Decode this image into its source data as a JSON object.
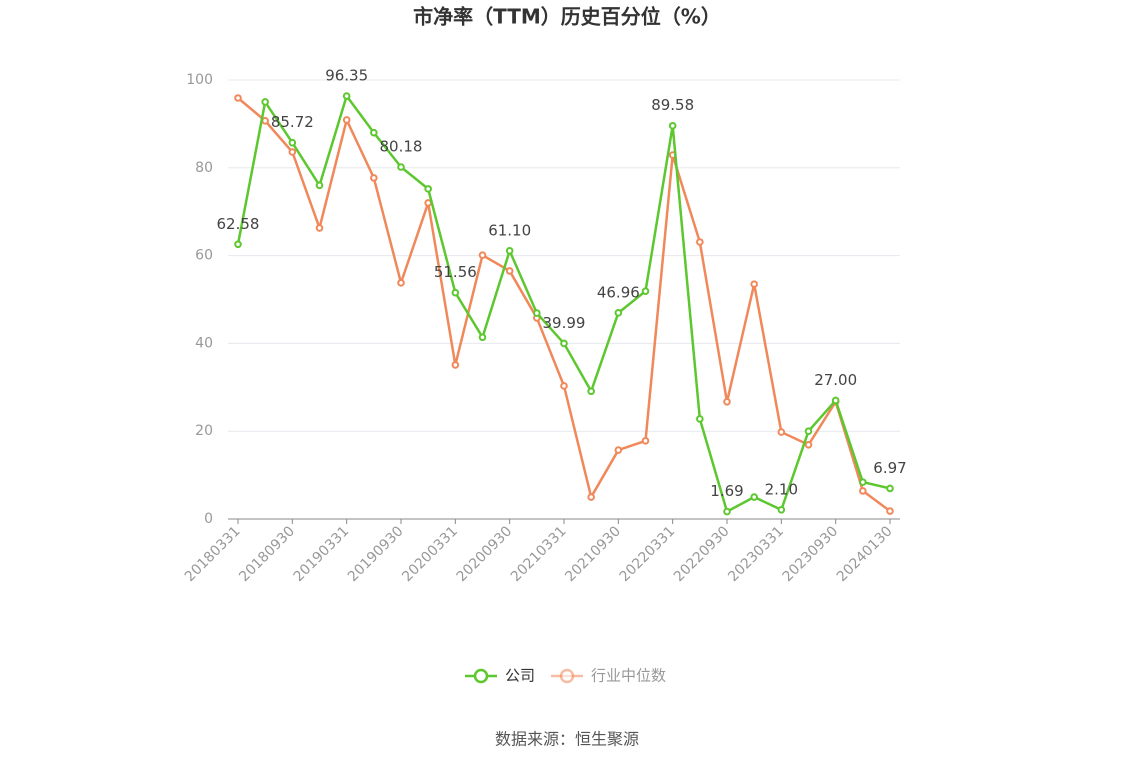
{
  "chart_data": {
    "type": "line",
    "title": "市净率（TTM）历史百分位（%）",
    "categories": [
      "20180331",
      null,
      "20180930",
      null,
      "20190331",
      null,
      "20190930",
      null,
      "20200331",
      null,
      "20200930",
      null,
      "20210331",
      null,
      "20210930",
      null,
      "20220331",
      null,
      "20220930",
      null,
      "20230331",
      null,
      "20230930",
      null,
      "20240130"
    ],
    "series": [
      {
        "name": "公司",
        "color": "#5cc72e",
        "values": [
          62.58,
          95.0,
          85.72,
          76.0,
          96.35,
          88.0,
          80.18,
          75.2,
          51.56,
          41.4,
          61.1,
          46.9,
          39.99,
          29.1,
          46.96,
          51.9,
          89.58,
          22.8,
          1.69,
          5.0,
          2.1,
          20.0,
          27.0,
          8.4,
          6.97
        ],
        "value_labels": [
          "62.58",
          null,
          "85.72",
          null,
          "96.35",
          null,
          "80.18",
          null,
          "51.56",
          null,
          "61.10",
          null,
          "39.99",
          null,
          "46.96",
          null,
          "89.58",
          null,
          "1.69",
          null,
          "2.10",
          null,
          "27.00",
          null,
          "6.97"
        ]
      },
      {
        "name": "行业中位数",
        "color": "#f0885a",
        "values": [
          95.9,
          90.7,
          83.6,
          66.3,
          90.9,
          77.7,
          53.8,
          72.0,
          35.1,
          60.1,
          56.5,
          45.8,
          30.3,
          5.0,
          15.7,
          17.8,
          82.9,
          63.1,
          26.7,
          53.5,
          19.8,
          16.9,
          26.7,
          6.4,
          1.8
        ]
      }
    ],
    "ylim": [
      0,
      100
    ],
    "yticks": [
      0,
      20,
      40,
      60,
      80,
      100
    ],
    "grid": true,
    "legend": "bottom",
    "source": "数据来源：恒生聚源"
  }
}
